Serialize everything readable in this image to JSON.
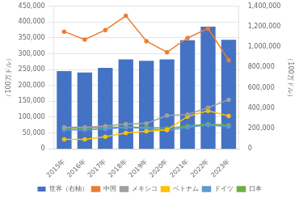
{
  "chart_data": {
    "type": "bar",
    "categories": [
      "2015年",
      "2016年",
      "2017年",
      "2018年",
      "2019年",
      "2020年",
      "2021年",
      "2022年",
      "2023年"
    ],
    "series": [
      {
        "name": "世界（右軸）",
        "type": "bar",
        "axis": "y2",
        "color": "#4472c4",
        "values": [
          763000,
          749000,
          795000,
          878000,
          865000,
          879000,
          1067000,
          1200000,
          1070000
        ]
      },
      {
        "name": "中国",
        "type": "line",
        "marker": "circle",
        "color": "#ed7d31",
        "values": [
          370000,
          345000,
          375000,
          420000,
          340000,
          305000,
          350000,
          380000,
          280000
        ]
      },
      {
        "name": "メキシコ",
        "type": "line",
        "marker": "circle",
        "color": "#a0a0a0",
        "values": [
          68000,
          68000,
          72000,
          78000,
          80000,
          105000,
          108000,
          130000,
          155000
        ]
      },
      {
        "name": "ベトナム",
        "type": "line",
        "marker": "circle",
        "color": "#ffc000",
        "values": [
          30000,
          30000,
          38000,
          50000,
          55000,
          60000,
          102000,
          120000,
          104000
        ]
      },
      {
        "name": "ドイツ",
        "type": "line",
        "marker": "circle",
        "color": "#5b9bd5",
        "values": [
          60000,
          60000,
          62000,
          68000,
          64000,
          58000,
          68000,
          75000,
          70000
        ]
      },
      {
        "name": "日本",
        "type": "line",
        "marker": "circle",
        "color": "#70ad47",
        "values": [
          65000,
          65000,
          68000,
          68000,
          68000,
          65000,
          72000,
          78000,
          75000
        ]
      }
    ],
    "ylabel": "（100万ドル）",
    "y2label": "（100万ドル）",
    "ylim": [
      0,
      450000
    ],
    "yticks": [
      0,
      {
        "value": 50000,
        "label": "50,000"
      },
      {
        "value": 100000,
        "label": "100,000"
      },
      {
        "value": 150000,
        "label": "150,000"
      },
      {
        "value": 200000,
        "label": "200,000"
      },
      {
        "value": 250000,
        "label": "250,000"
      },
      {
        "value": 300000,
        "label": "300,000"
      },
      {
        "value": 350000,
        "label": "350,000"
      },
      {
        "value": 400000,
        "label": "400,000"
      },
      {
        "value": 450000,
        "label": "450,000"
      }
    ],
    "y2lim": [
      0,
      1400000
    ],
    "y2ticks": [
      0,
      {
        "value": 200000,
        "label": "200,000"
      },
      {
        "value": 400000,
        "label": "400,000"
      },
      {
        "value": 600000,
        "label": "600,000"
      },
      {
        "value": 800000,
        "label": "800,000"
      },
      {
        "value": 1000000,
        "label": "1,000,000"
      },
      {
        "value": 1200000,
        "label": "1,200,000"
      },
      {
        "value": 1400000,
        "label": "1,400,000"
      }
    ],
    "grid": true,
    "legend": "bottom"
  }
}
